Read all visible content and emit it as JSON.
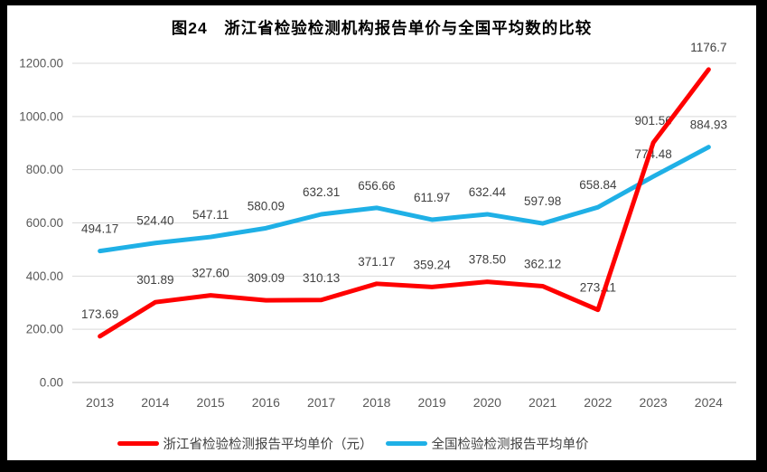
{
  "title": "图24　浙江省检验检测机构报告单价与全国平均数的比较",
  "chart_data": {
    "type": "line",
    "title": "图24　浙江省检验检测机构报告单价与全国平均数的比较",
    "categories": [
      "2013",
      "2014",
      "2015",
      "2016",
      "2017",
      "2018",
      "2019",
      "2020",
      "2021",
      "2022",
      "2023",
      "2024"
    ],
    "series": [
      {
        "name": "浙江省检验检测报告平均单价（元）",
        "color": "#ff0000",
        "values": [
          173.69,
          301.89,
          327.6,
          309.09,
          310.13,
          371.17,
          359.24,
          378.5,
          362.12,
          273.11,
          901.56,
          1176.7
        ],
        "labels": [
          "173.69",
          "301.89",
          "327.60",
          "309.09",
          "310.13",
          "371.17",
          "359.24",
          "378.50",
          "362.12",
          "273.11",
          "901.56",
          "1176.7"
        ]
      },
      {
        "name": "全国检验检测报告平均单价",
        "color": "#1fb0e6",
        "values": [
          494.17,
          524.4,
          547.11,
          580.09,
          632.31,
          656.66,
          611.97,
          632.44,
          597.98,
          658.84,
          774.48,
          884.93
        ],
        "labels": [
          "494.17",
          "524.40",
          "547.11",
          "580.09",
          "632.31",
          "656.66",
          "611.97",
          "632.44",
          "597.98",
          "658.84",
          "774.48",
          "884.93"
        ]
      }
    ],
    "ylim": [
      0,
      1200
    ],
    "y_tick_step": 200,
    "y_tick_labels": [
      "0.00",
      "200.00",
      "400.00",
      "600.00",
      "800.00",
      "1000.00",
      "1200.00"
    ],
    "grid": true,
    "legend_position": "bottom",
    "colors": {
      "gridline": "#d9d9d9",
      "axis_line": "#bfbfbf",
      "axis_text": "#595959",
      "data_label_text": "#404040",
      "frame_border": "#000000",
      "background": "#ffffff"
    }
  }
}
